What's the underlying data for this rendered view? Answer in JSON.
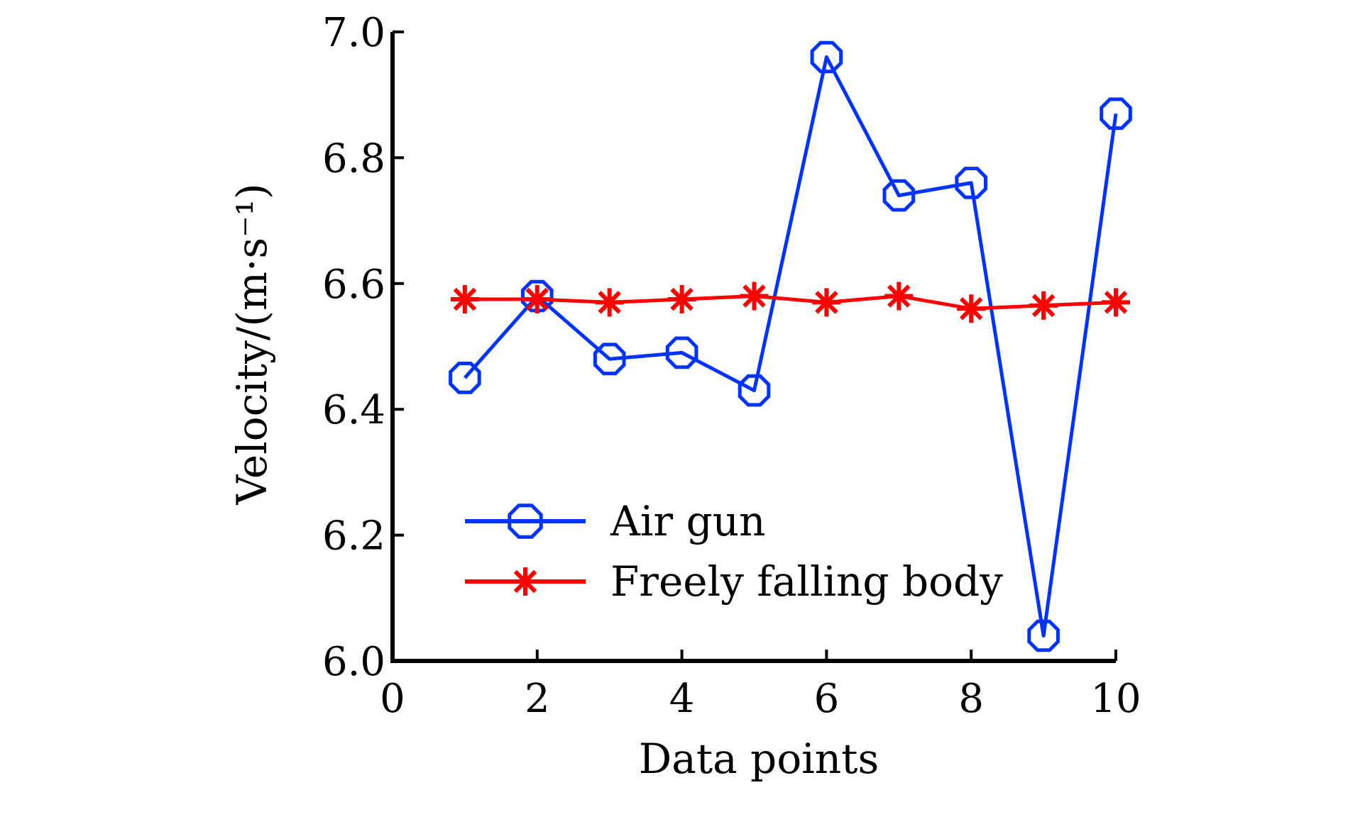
{
  "chart_data": {
    "type": "line",
    "xlabel": "Data points",
    "ylabel": "Velocity/(m·s⁻¹)",
    "xlim": [
      0,
      10
    ],
    "ylim": [
      6.0,
      7.0
    ],
    "x_ticks": [
      "0",
      "2",
      "4",
      "6",
      "8",
      "10"
    ],
    "y_ticks": [
      "6.0",
      "6.2",
      "6.4",
      "6.6",
      "6.8",
      "7.0"
    ],
    "x_tick_values": [
      0,
      2,
      4,
      6,
      8,
      10
    ],
    "y_tick_values": [
      6.0,
      6.2,
      6.4,
      6.6,
      6.8,
      7.0
    ],
    "grid": false,
    "legend_position": "bottom-left",
    "x": [
      1,
      2,
      3,
      4,
      5,
      6,
      7,
      8,
      9,
      10
    ],
    "series": [
      {
        "name": "Air gun",
        "color": "#0033ff",
        "marker": "circle-octagon",
        "values": [
          6.45,
          6.58,
          6.48,
          6.49,
          6.43,
          6.96,
          6.74,
          6.76,
          6.04,
          6.87
        ]
      },
      {
        "name": "Freely falling body",
        "color": "#ff0000",
        "marker": "asterisk",
        "values": [
          6.575,
          6.575,
          6.57,
          6.575,
          6.58,
          6.57,
          6.58,
          6.56,
          6.565,
          6.57
        ]
      }
    ]
  }
}
